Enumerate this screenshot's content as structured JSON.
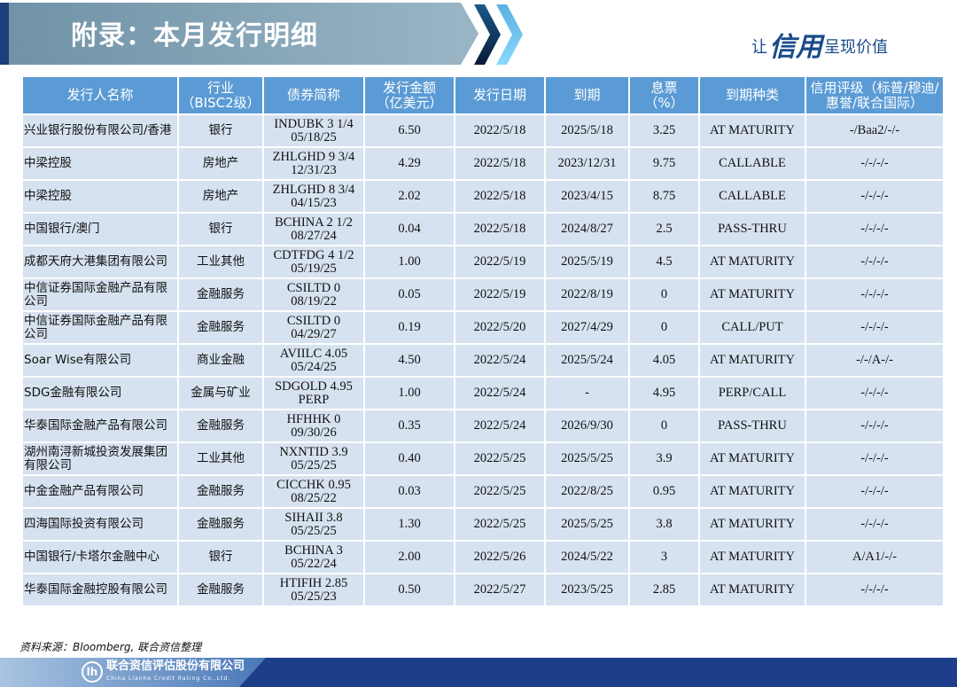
{
  "header": {
    "title": "附录：本月发行明细",
    "slogan_pre": "让",
    "slogan_mid": "信用",
    "slogan_post": "呈现价值"
  },
  "table": {
    "columns": [
      "发行人名称",
      "行业\n（BISC2级）",
      "债券简称",
      "发行金额\n（亿美元）",
      "发行日期",
      "到期",
      "息票\n（%）",
      "到期种类",
      "信用评级（标普/穆迪/惠誉/联合国际）"
    ],
    "rows": [
      [
        "兴业银行股份有限公司/香港",
        "银行",
        "INDUBK 3 1/4\n05/18/25",
        "6.50",
        "2022/5/18",
        "2025/5/18",
        "3.25",
        "AT MATURITY",
        "-/Baa2/-/-"
      ],
      [
        "中梁控股",
        "房地产",
        "ZHLGHD 9 3/4\n12/31/23",
        "4.29",
        "2022/5/18",
        "2023/12/31",
        "9.75",
        "CALLABLE",
        "-/-/-/-"
      ],
      [
        "中梁控股",
        "房地产",
        "ZHLGHD 8 3/4\n04/15/23",
        "2.02",
        "2022/5/18",
        "2023/4/15",
        "8.75",
        "CALLABLE",
        "-/-/-/-"
      ],
      [
        "中国银行/澳门",
        "银行",
        "BCHINA 2 1/2\n08/27/24",
        "0.04",
        "2022/5/18",
        "2024/8/27",
        "2.5",
        "PASS-THRU",
        "-/-/-/-"
      ],
      [
        "成都天府大港集团有限公司",
        "工业其他",
        "CDTFDG 4 1/2\n05/19/25",
        "1.00",
        "2022/5/19",
        "2025/5/19",
        "4.5",
        "AT MATURITY",
        "-/-/-/-"
      ],
      [
        "中信证券国际金融产品有限公司",
        "金融服务",
        "CSILTD 0\n08/19/22",
        "0.05",
        "2022/5/19",
        "2022/8/19",
        "0",
        "AT MATURITY",
        "-/-/-/-"
      ],
      [
        "中信证券国际金融产品有限公司",
        "金融服务",
        "CSILTD 0\n04/29/27",
        "0.19",
        "2022/5/20",
        "2027/4/29",
        "0",
        "CALL/PUT",
        "-/-/-/-"
      ],
      [
        "Soar Wise有限公司",
        "商业金融",
        "AVIILC 4.05\n05/24/25",
        "4.50",
        "2022/5/24",
        "2025/5/24",
        "4.05",
        "AT MATURITY",
        "-/-/A-/-"
      ],
      [
        "SDG金融有限公司",
        "金属与矿业",
        "SDGOLD 4.95\nPERP",
        "1.00",
        "2022/5/24",
        "-",
        "4.95",
        "PERP/CALL",
        "-/-/-/-"
      ],
      [
        "华泰国际金融产品有限公司",
        "金融服务",
        "HFHHK 0\n09/30/26",
        "0.35",
        "2022/5/24",
        "2026/9/30",
        "0",
        "PASS-THRU",
        "-/-/-/-"
      ],
      [
        "湖州南浔新城投资发展集团有限公司",
        "工业其他",
        "NXNTID 3.9\n05/25/25",
        "0.40",
        "2022/5/25",
        "2025/5/25",
        "3.9",
        "AT MATURITY",
        "-/-/-/-"
      ],
      [
        "中金金融产品有限公司",
        "金融服务",
        "CICCHK 0.95\n08/25/22",
        "0.03",
        "2022/5/25",
        "2022/8/25",
        "0.95",
        "AT MATURITY",
        "-/-/-/-"
      ],
      [
        "四海国际投资有限公司",
        "金融服务",
        "SIHAII 3.8\n05/25/25",
        "1.30",
        "2022/5/25",
        "2025/5/25",
        "3.8",
        "AT MATURITY",
        "-/-/-/-"
      ],
      [
        "中国银行/卡塔尔金融中心",
        "银行",
        "BCHINA 3\n05/22/24",
        "2.00",
        "2022/5/26",
        "2024/5/22",
        "3",
        "AT MATURITY",
        "A/A1/-/-"
      ],
      [
        "华泰国际金融控股有限公司",
        "金融服务",
        "HTIFIH 2.85\n05/25/23",
        "0.50",
        "2022/5/27",
        "2023/5/25",
        "2.85",
        "AT MATURITY",
        "-/-/-/-"
      ]
    ]
  },
  "source": "资料来源：Bloomberg, 联合资信整理",
  "footer": {
    "company_cn": "联合资信评估股份有限公司",
    "company_en": "China Lianhe Credit Rating Co.,Ltd."
  }
}
